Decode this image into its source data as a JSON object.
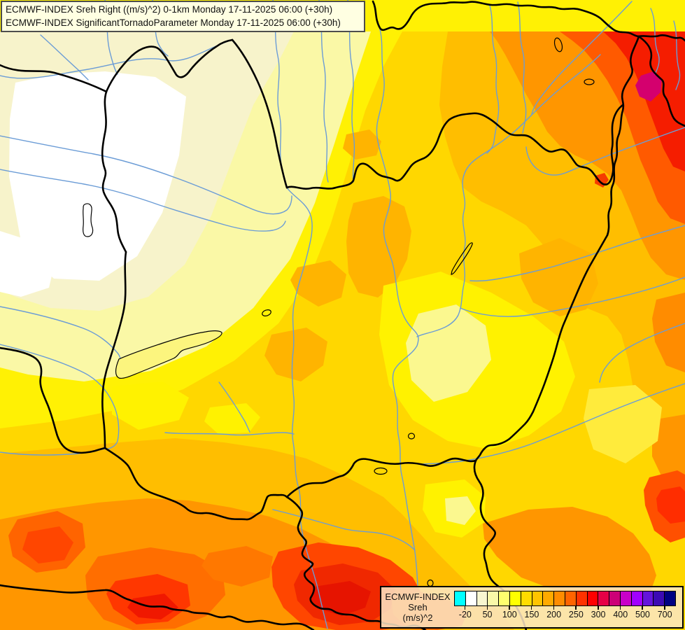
{
  "titles": {
    "line1": "ECMWF-INDEX Sreh Right ((m/s)^2) 0-1km Monday 17-11-2025 06:00 (+30h)",
    "line2": "ECMWF-INDEX SignificantTornadoParameter Monday 17-11-2025 06:00 (+30h)"
  },
  "legend": {
    "product": "ECMWF-INDEX",
    "parameter": "Sreh",
    "units": "(m/s)^2",
    "colors": [
      "#00FFFF",
      "#FFFFFF",
      "#F8F6D0",
      "#FAF8A8",
      "#FFFF6E",
      "#FFFF00",
      "#FFDC00",
      "#FFC400",
      "#FFAA00",
      "#FF8C00",
      "#FF6400",
      "#FF3200",
      "#FF0000",
      "#E60046",
      "#CC0077",
      "#C800C8",
      "#A000FF",
      "#6414DC",
      "#3C0AB4",
      "#000082"
    ],
    "ticks": [
      "-20",
      "50",
      "100",
      "150",
      "200",
      "250",
      "300",
      "400",
      "500",
      "700"
    ],
    "tick_positions": [
      1,
      3,
      5,
      7,
      9,
      11,
      13,
      15,
      17,
      19
    ]
  },
  "map": {
    "palette": {
      "border": "#000000",
      "river": "#6B9CD6",
      "lake_outline": "#000000",
      "field_min": "#FFFFFF",
      "field_mid": "#FFD700",
      "field_high": "#FF4600",
      "field_extreme_spot": "#D4006E"
    },
    "features": [
      "country-borders",
      "rivers",
      "lake-balaton",
      "lake-neusiedl",
      "contour-fill-field"
    ]
  }
}
